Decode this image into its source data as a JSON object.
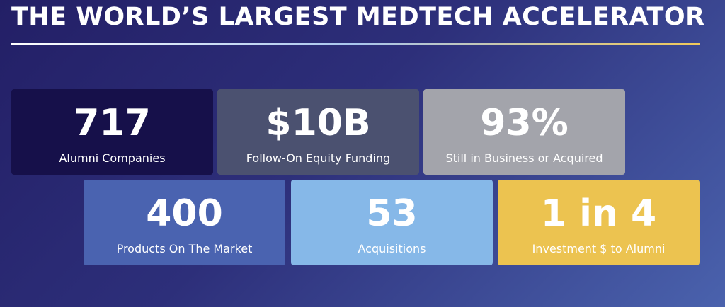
{
  "header": {
    "title": "THE WORLD’S LARGEST MEDTECH ACCELERATOR"
  },
  "stats": [
    {
      "value": "717",
      "label": "Alumni Companies"
    },
    {
      "value": "$10B",
      "label": "Follow-On Equity Funding"
    },
    {
      "value": "93%",
      "label": "Still in Business or Acquired"
    },
    {
      "value": "400",
      "label": "Products On The Market"
    },
    {
      "value": "53",
      "label": "Acquisitions"
    },
    {
      "value": "1 in 4",
      "label": "Investment $ to Alumni"
    }
  ]
}
